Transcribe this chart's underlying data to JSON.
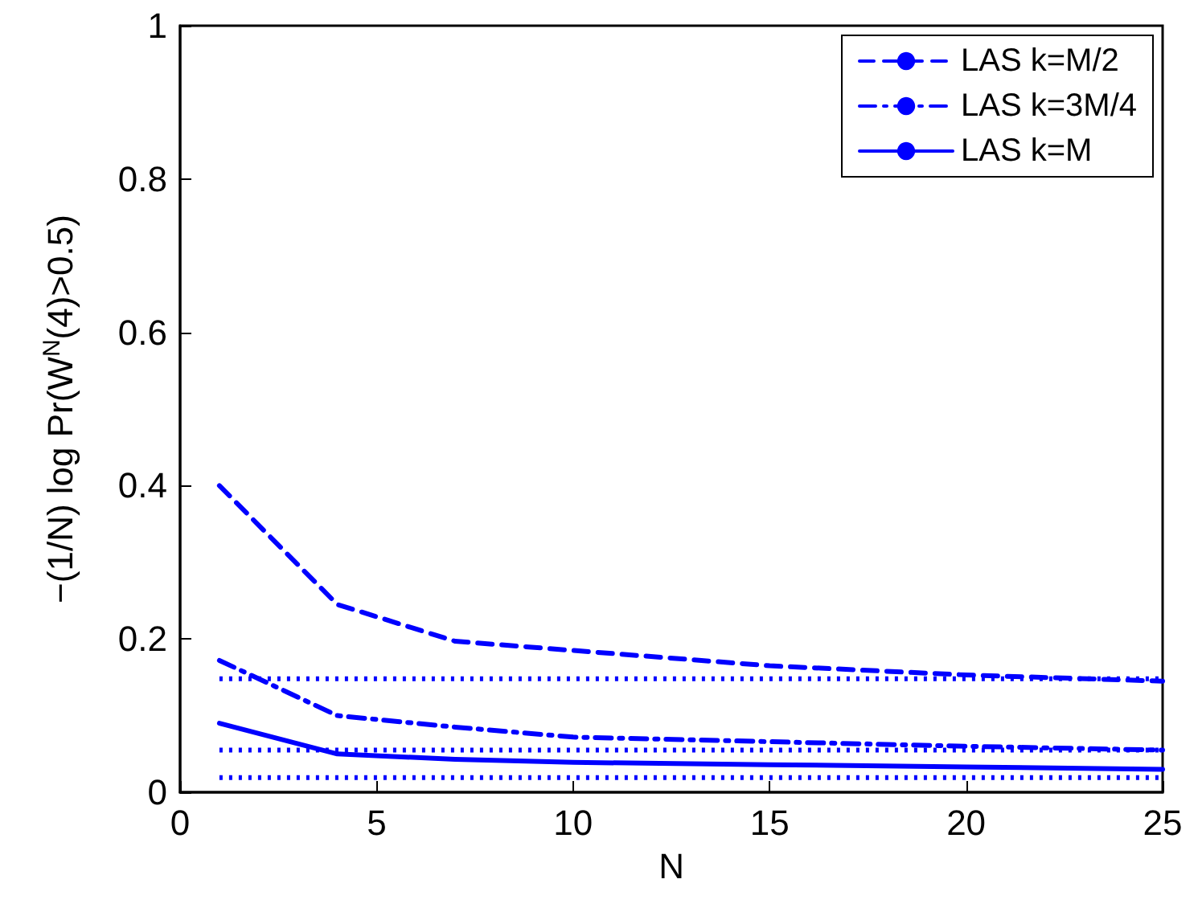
{
  "chart_data": {
    "type": "line",
    "xlabel": "N",
    "ylabel": "−(1/N) log Pr(W$^{N}$(4)>0.5)",
    "xlim": [
      0,
      25
    ],
    "xticks": [
      0,
      5,
      10,
      15,
      20,
      25
    ],
    "ylim": [
      0,
      1
    ],
    "yticks": [
      0,
      0.2,
      0.4,
      0.6,
      0.8,
      1
    ],
    "grid": false,
    "legend": "top right",
    "marker": "none",
    "series": [
      {
        "name": "LAS k=M/2",
        "color": "#0000ff",
        "line_style": "dashed",
        "x": [
          1,
          4,
          7,
          10,
          15,
          20,
          25
        ],
        "values": [
          0.4,
          0.245,
          0.197,
          0.185,
          0.165,
          0.153,
          0.145
        ]
      },
      {
        "name": "LAS k=3M/4",
        "color": "#0000ff",
        "line_style": "dashdot",
        "x": [
          1,
          4,
          7,
          10,
          15,
          20,
          25
        ],
        "values": [
          0.172,
          0.1,
          0.085,
          0.072,
          0.066,
          0.06,
          0.055
        ]
      },
      {
        "name": "LAS k=M",
        "color": "#0000ff",
        "line_style": "solid",
        "x": [
          1,
          4,
          7,
          10,
          15,
          20,
          25
        ],
        "values": [
          0.09,
          0.05,
          0.043,
          0.039,
          0.036,
          0.033,
          0.03
        ]
      },
      {
        "color": "#0000ff",
        "line_style": "dotted",
        "x": [
          1,
          25
        ],
        "values": [
          0.148,
          0.148
        ]
      },
      {
        "color": "#0000ff",
        "line_style": "dotted",
        "x": [
          1,
          25
        ],
        "values": [
          0.055,
          0.055
        ]
      },
      {
        "color": "#0000ff",
        "line_style": "dotted",
        "x": [
          1,
          25
        ],
        "values": [
          0.019,
          0.019
        ]
      }
    ]
  }
}
